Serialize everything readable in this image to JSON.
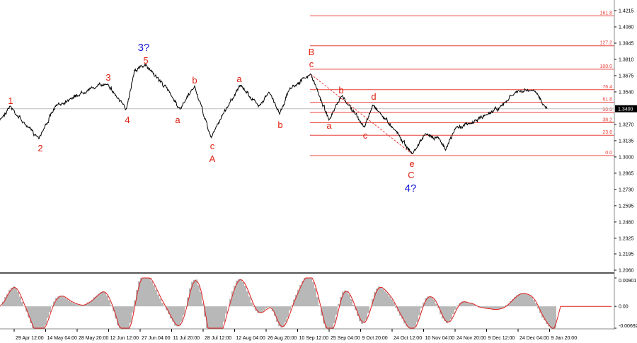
{
  "colors": {
    "fib": "#e8403a",
    "wave_red": "#e02010",
    "wave_blue": "#1818d8",
    "price": "#000000",
    "osc_hist": "#b8b8b8",
    "osc_line": "#e02020",
    "badge_bg": "#000000",
    "badge_fg": "#ffffff"
  },
  "chart_data": {
    "type": "line",
    "title": "",
    "price_axis": {
      "ylim": [
        1.206,
        1.4215
      ],
      "ticks": [
        "1.4215",
        "1.4080",
        "1.3945",
        "1.3810",
        "1.3675",
        "1.3540",
        "1.3270",
        "1.3135",
        "1.3000",
        "1.2865",
        "1.2730",
        "1.2595",
        "1.2460",
        "1.2325",
        "1.2195",
        "1.2060"
      ]
    },
    "time_axis": {
      "ticks": [
        "29 Apr 12:00",
        "14 May 04:00",
        "28 May 20:00",
        "12 Jun 12:00",
        "27 Jun 04:00",
        "11 Jul 20:00",
        "28 Jul 12:00",
        "12 Aug 04:00",
        "26 Aug 20:00",
        "10 Sep 12:00",
        "25 Sep 04:00",
        "9 Oct 20:00",
        "24 Oct 12:00",
        "10 Nov 04:00",
        "24 Nov 20:00",
        "9 Dec 12:00",
        "24 Dec 04:00",
        "9 Jan 20:00"
      ]
    },
    "current_price": "1.3400",
    "price_pivots": [
      {
        "date": "22 Apr",
        "price": 1.3305
      },
      {
        "date": "27 Apr",
        "price": 1.3422
      },
      {
        "date": "4 May",
        "price": 1.3275
      },
      {
        "date": "11 May",
        "price": 1.3158
      },
      {
        "date": "19 May",
        "price": 1.3422
      },
      {
        "date": "26 May",
        "price": 1.3481
      },
      {
        "date": "5 Jun",
        "price": 1.3569
      },
      {
        "date": "13 Jun",
        "price": 1.361
      },
      {
        "date": "17 Jun",
        "price": 1.351
      },
      {
        "date": "22 Jun",
        "price": 1.3393
      },
      {
        "date": "26 Jun",
        "price": 1.3716
      },
      {
        "date": "1 Jul",
        "price": 1.3763
      },
      {
        "date": "4 Jul",
        "price": 1.3716
      },
      {
        "date": "13 Jul",
        "price": 1.354
      },
      {
        "date": "18 Jul",
        "price": 1.3393
      },
      {
        "date": "25 Jul",
        "price": 1.3587
      },
      {
        "date": "2 Aug",
        "price": 1.3158
      },
      {
        "date": "7 Aug",
        "price": 1.3334
      },
      {
        "date": "16 Aug",
        "price": 1.3598
      },
      {
        "date": "25 Aug",
        "price": 1.3422
      },
      {
        "date": "30 Aug",
        "price": 1.354
      },
      {
        "date": "4 Sep",
        "price": 1.3364
      },
      {
        "date": "9 Sep",
        "price": 1.3569
      },
      {
        "date": "19 Sep",
        "price": 1.3687
      },
      {
        "date": "28 Sep",
        "price": 1.3305
      },
      {
        "date": "4 Oct",
        "price": 1.351
      },
      {
        "date": "15 Oct",
        "price": 1.3246
      },
      {
        "date": "19 Oct",
        "price": 1.3434
      },
      {
        "date": "30 Oct",
        "price": 1.3217
      },
      {
        "date": "7 Nov",
        "price": 1.3023
      },
      {
        "date": "13 Nov",
        "price": 1.3187
      },
      {
        "date": "20 Nov",
        "price": 1.3158
      },
      {
        "date": "23 Nov",
        "price": 1.3058
      },
      {
        "date": "28 Nov",
        "price": 1.3246
      },
      {
        "date": "5 Dec",
        "price": 1.3275
      },
      {
        "date": "14 Dec",
        "price": 1.3364
      },
      {
        "date": "20 Dec",
        "price": 1.3422
      },
      {
        "date": "27 Dec",
        "price": 1.354
      },
      {
        "date": "5 Jan",
        "price": 1.3552
      },
      {
        "date": "11 Jan",
        "price": 1.34
      }
    ],
    "fibonacci": {
      "low": 1.3011,
      "high": 1.3728,
      "levels": [
        "161.8",
        "127.2",
        "100.0",
        "76.4",
        "61.8",
        "50.0",
        "38.2",
        "23.6",
        "0.0"
      ]
    },
    "oscillator": {
      "ticks": [
        "0.00901",
        "0.00",
        "-0.00692"
      ],
      "ylim": [
        -0.00692,
        0.00901
      ]
    },
    "wave_labels": [
      {
        "text": "1",
        "color": "red"
      },
      {
        "text": "2",
        "color": "red"
      },
      {
        "text": "3",
        "color": "red"
      },
      {
        "text": "4",
        "color": "red"
      },
      {
        "text": "5",
        "color": "red"
      },
      {
        "text": "3?",
        "color": "blue"
      },
      {
        "text": "a",
        "color": "red"
      },
      {
        "text": "b",
        "color": "red"
      },
      {
        "text": "c",
        "color": "red"
      },
      {
        "text": "A",
        "color": "red"
      },
      {
        "text": "a",
        "color": "red"
      },
      {
        "text": "b",
        "color": "red"
      },
      {
        "text": "B",
        "color": "red"
      },
      {
        "text": "c",
        "color": "red"
      },
      {
        "text": "a",
        "color": "red"
      },
      {
        "text": "b",
        "color": "red"
      },
      {
        "text": "c",
        "color": "red"
      },
      {
        "text": "d",
        "color": "red"
      },
      {
        "text": "e",
        "color": "red"
      },
      {
        "text": "C",
        "color": "red"
      },
      {
        "text": "4?",
        "color": "blue"
      }
    ]
  }
}
